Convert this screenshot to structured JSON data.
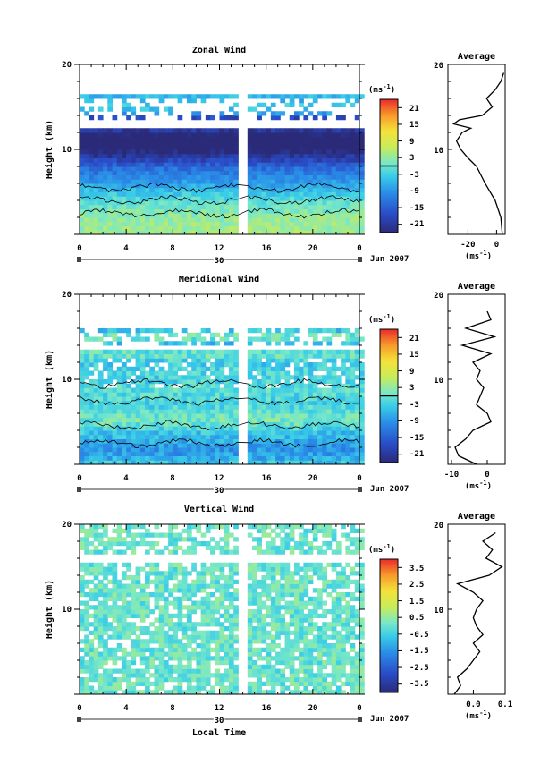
{
  "chart_data": [
    {
      "type": "heatmap",
      "title": "Zonal Wind",
      "xlabel": "",
      "ylabel": "Height (km)",
      "xlim": [
        0,
        24
      ],
      "ylim": [
        0,
        20
      ],
      "x_ticks": [
        "0",
        "4",
        "8",
        "12",
        "16",
        "20",
        "0"
      ],
      "y_ticks": [
        "20",
        "10"
      ],
      "date_label": "30",
      "month_label": "Jun 2007",
      "gap_hour": 14,
      "colorbar": {
        "unit_base": "(ms",
        "unit_exp": "-1",
        "unit_close": ")",
        "ticks": [
          "21",
          "15",
          "9",
          "3",
          "-3",
          "-9",
          "-15",
          "-21"
        ],
        "range": [
          -24,
          24
        ],
        "zero_line": 0
      },
      "profile_levels_km": [
        0,
        2,
        4,
        6,
        8,
        9,
        10,
        11,
        12,
        12.5,
        13,
        13.5,
        14,
        15,
        16,
        17,
        18,
        19
      ],
      "mean_values": [
        4,
        3,
        -1,
        -8,
        -14,
        -20,
        -25,
        -28,
        -24,
        -18,
        -30,
        -26,
        -10,
        -3,
        -7,
        -1,
        3,
        5
      ],
      "profile_title": "Average",
      "profile_xlim": [
        -34,
        6
      ],
      "profile_x_ticks": [
        {
          "v": -20,
          "t": "-20"
        },
        {
          "v": 0,
          "t": "0"
        }
      ],
      "profile_xlabel_base": "(ms",
      "profile_xlabel_exp": "-1",
      "profile_xlabel_close": ")"
    },
    {
      "type": "heatmap",
      "title": "Meridional Wind",
      "xlabel": "",
      "ylabel": "Height (km)",
      "xlim": [
        0,
        24
      ],
      "ylim": [
        0,
        20
      ],
      "x_ticks": [
        "0",
        "4",
        "8",
        "12",
        "16",
        "20",
        "0"
      ],
      "y_ticks": [
        "20",
        "10"
      ],
      "date_label": "30",
      "month_label": "Jun 2007",
      "gap_hour": 14,
      "colorbar": {
        "unit_base": "(ms",
        "unit_exp": "-1",
        "unit_close": ")",
        "ticks": [
          "21",
          "15",
          "9",
          "3",
          "-3",
          "-9",
          "-15",
          "-21"
        ],
        "range": [
          -24,
          24
        ],
        "zero_line": 0
      },
      "profile_levels_km": [
        0,
        1,
        2,
        3,
        4,
        5,
        6,
        7,
        8,
        9,
        10,
        11,
        12,
        13,
        14,
        15,
        16,
        17,
        18
      ],
      "mean_values": [
        -3,
        -8,
        -9,
        -6,
        -4,
        1,
        0,
        -3,
        -2,
        -1,
        -3,
        -2,
        -4,
        1,
        -7,
        2,
        -6,
        1,
        0
      ],
      "profile_title": "Average",
      "profile_xlim": [
        -11,
        5
      ],
      "profile_x_ticks": [
        {
          "v": -10,
          "t": "-10"
        },
        {
          "v": 0,
          "t": "0"
        }
      ],
      "profile_xlabel_base": "(ms",
      "profile_xlabel_exp": "-1",
      "profile_xlabel_close": ")"
    },
    {
      "type": "heatmap",
      "title": "Vertical Wind",
      "xlabel": "Local Time",
      "ylabel": "Height (km)",
      "xlim": [
        0,
        24
      ],
      "ylim": [
        0,
        20
      ],
      "x_ticks": [
        "0",
        "4",
        "8",
        "12",
        "16",
        "20",
        "0"
      ],
      "y_ticks": [
        "20",
        "10"
      ],
      "date_label": "30",
      "month_label": "Jun 2007",
      "gap_hour": 14,
      "colorbar": {
        "unit_base": "(ms",
        "unit_exp": "-1",
        "unit_close": ")",
        "ticks": [
          "3.5",
          "2.5",
          "1.5",
          "0.5",
          "-0.5",
          "-1.5",
          "-2.5",
          "-3.5"
        ],
        "range": [
          -4,
          4
        ],
        "zero_line": null
      },
      "profile_levels_km": [
        0,
        1,
        2,
        3,
        4,
        5,
        6,
        7,
        8,
        9,
        10,
        11,
        12,
        13,
        14,
        15,
        16,
        17,
        18,
        19
      ],
      "mean_values": [
        -0.06,
        -0.04,
        -0.05,
        -0.02,
        0.0,
        0.02,
        0.0,
        0.03,
        0.01,
        0.0,
        0.01,
        0.03,
        0.0,
        -0.05,
        0.05,
        0.09,
        0.04,
        0.06,
        0.03,
        0.07
      ],
      "profile_title": "Average",
      "profile_xlim": [
        -0.08,
        0.1
      ],
      "profile_x_ticks": [
        {
          "v": 0,
          "t": "0.0"
        },
        {
          "v": 0.1,
          "t": "0.1"
        }
      ],
      "profile_xlabel_base": "(ms",
      "profile_xlabel_exp": "-1",
      "profile_xlabel_close": ")"
    }
  ]
}
